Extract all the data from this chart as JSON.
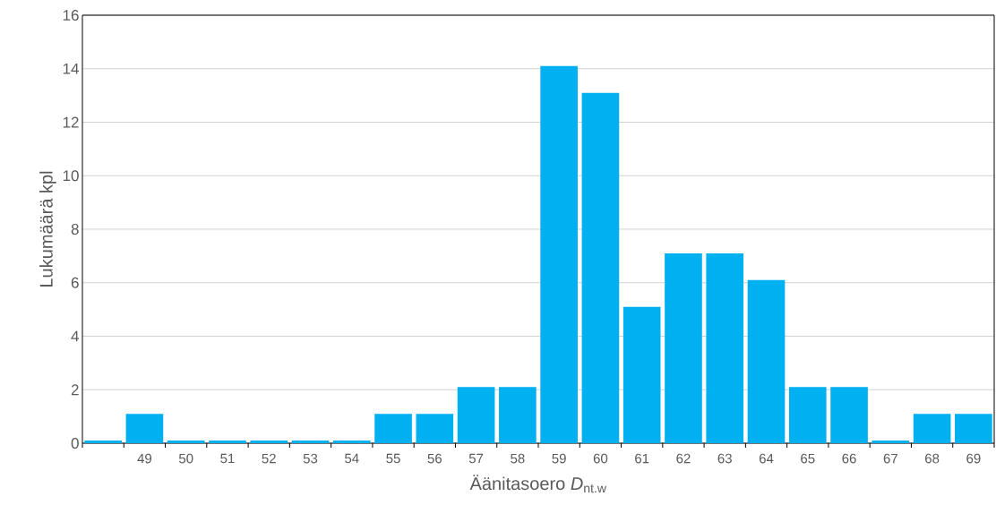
{
  "chart_data": {
    "type": "bar",
    "xlabel": "Äänitasoero *D*$_{nt.w}$",
    "ylabel": "Lukumäärä kpl",
    "categories": [
      null,
      "49",
      "50",
      "51",
      "52",
      "53",
      "54",
      "55",
      "56",
      "57",
      "58",
      "59",
      "60",
      "61",
      "62",
      "63",
      "64",
      "65",
      "66",
      "67",
      "68",
      "69"
    ],
    "values": [
      0.1,
      1.1,
      0.1,
      0.1,
      0.1,
      0.1,
      0.1,
      1.1,
      1.1,
      2.1,
      2.1,
      14.1,
      13.1,
      5.1,
      7.1,
      7.1,
      6.1,
      2.1,
      2.1,
      0.1,
      1.1,
      1.1
    ],
    "color": "#00b0f0",
    "ylim": [
      0,
      16
    ],
    "yticks": [
      0,
      2,
      4,
      6,
      8,
      10,
      12,
      14,
      16
    ],
    "grid": "y"
  }
}
